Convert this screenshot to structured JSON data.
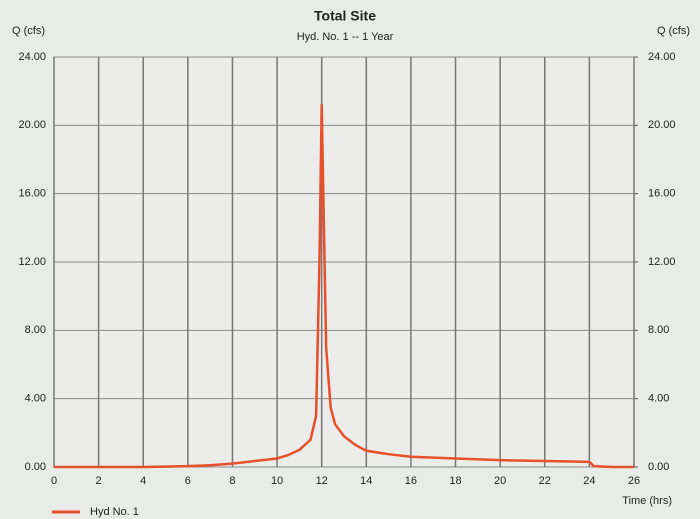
{
  "chart_data": {
    "type": "line",
    "title": "Total Site",
    "subtitle": "Hyd. No. 1 -- 1 Year",
    "ylabel": "Q (cfs)",
    "y2label": "Q (cfs)",
    "xlabel": "Time (hrs)",
    "x": [
      0,
      2,
      4,
      5,
      6,
      7,
      8,
      9,
      10,
      10.5,
      11,
      11.5,
      11.75,
      11.9,
      12.0,
      12.1,
      12.2,
      12.4,
      12.6,
      13,
      13.5,
      14,
      15,
      16,
      18,
      20,
      22,
      24,
      24.2,
      25,
      26
    ],
    "series": [
      {
        "name": "Hyd No. 1",
        "color": "#e8502c",
        "values": [
          0,
          0,
          0,
          0.02,
          0.05,
          0.1,
          0.2,
          0.35,
          0.5,
          0.7,
          1.0,
          1.6,
          3.0,
          12.0,
          21.2,
          14.0,
          7.0,
          3.5,
          2.5,
          1.8,
          1.3,
          0.95,
          0.75,
          0.6,
          0.5,
          0.4,
          0.35,
          0.3,
          0.05,
          0,
          0
        ]
      }
    ],
    "xlim": [
      0,
      26
    ],
    "xticks": [
      0,
      2,
      4,
      6,
      8,
      10,
      12,
      14,
      16,
      18,
      20,
      22,
      24,
      26
    ],
    "ylim": [
      0,
      24
    ],
    "yticks": [
      {
        "value": 0,
        "label": "0.00"
      },
      {
        "value": 4,
        "label": "4.00"
      },
      {
        "value": 8,
        "label": "8.00"
      },
      {
        "value": 12,
        "label": "12.00"
      },
      {
        "value": 16,
        "label": "16.00"
      },
      {
        "value": 20,
        "label": "20.00"
      },
      {
        "value": 24,
        "label": "24.00"
      }
    ],
    "y2lim": [
      0,
      24
    ],
    "y2ticks": [
      {
        "value": 0,
        "label": "0.00"
      },
      {
        "value": 4,
        "label": "4.00"
      },
      {
        "value": 8,
        "label": "8.00"
      },
      {
        "value": 12,
        "label": "12.00"
      },
      {
        "value": 16,
        "label": "16.00"
      },
      {
        "value": 20,
        "label": "20.00"
      },
      {
        "value": 24,
        "label": "24.00"
      }
    ],
    "grid": true,
    "legend": "bottom-left"
  }
}
